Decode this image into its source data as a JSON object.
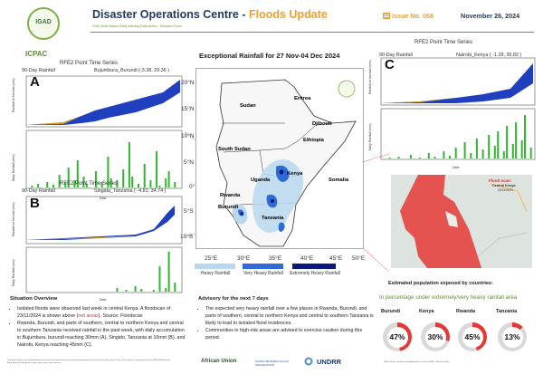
{
  "header": {
    "org": "ICPAC",
    "logo_word": "IGAD",
    "title_main": "Disaster Operations Centre - ",
    "title_highlight": "Floods Update",
    "subtitle": "IGAD Multi-Hazard Early Warning Early Action - Situation Room",
    "issue": "Issue No. 068",
    "date": "November 26, 2024"
  },
  "panels": [
    {
      "letter": "A",
      "title": "RFE2 Point Time Series",
      "series": "90-Day Rainfall",
      "loc": "Bujumbura_Burundi (-3.38, 29.36 )"
    },
    {
      "letter": "B",
      "title": "RFE2 Point Time Series",
      "series": "90-Day Rainfall",
      "loc": "Singida_Tanzania ( -4.81, 34.74 )"
    },
    {
      "letter": "C",
      "title": "RFE2 Point Time Series",
      "series": "90-Day Rainfall",
      "loc": "Nairobi_Kenya ( -1.28, 36.82 )"
    }
  ],
  "axis": {
    "top_ylabel": "Rainfall vs Normal (mm)",
    "bottom_ylabel": "Daily Rainfall (mm)",
    "xlabel": "Date"
  },
  "map": {
    "title": "Exceptional Rainfall for 27 Nov-04 Dec 2024",
    "lats": [
      "20°N",
      "15°N",
      "10°N",
      "5°N",
      "0°",
      "5°S",
      "10°S"
    ],
    "lons": [
      "25°E",
      "30°E",
      "35°E",
      "40°E",
      "45°E",
      "50°E"
    ],
    "countries": [
      "Sudan",
      "Eritrea",
      "Djibouti",
      "Ethiopia",
      "South Sudan",
      "Somalia",
      "Kenya",
      "Uganda",
      "Rwanda",
      "Burundi",
      "Tanzania"
    ],
    "legend": [
      "Heavy Rainfall",
      "Very Heavy Rainfall",
      "Extremely Heavy Rainfall"
    ],
    "colors": {
      "heavy": "#b9d8ef",
      "very": "#2f6bd6",
      "extreme": "#0a1a7c"
    }
  },
  "flood_scan": {
    "title": "Flood scan:",
    "place": "Central Kenya",
    "date": "23/11/2024"
  },
  "exposure": {
    "title": "Estimated population exposed by countries:",
    "subtitle": "In percentage under extremely/very heavy rainfall area",
    "items": [
      {
        "country": "Burundi",
        "pct": "47%",
        "value": 47
      },
      {
        "country": "Kenya",
        "pct": "30%",
        "value": 30
      },
      {
        "country": "Rwanda",
        "pct": "45%",
        "value": 45
      },
      {
        "country": "Tanzania",
        "pct": "13%",
        "value": 13
      }
    ]
  },
  "situation": {
    "heading": "Situation Overview",
    "b1_pre": "Isolated floods were observed last week in central Kenya. A floodscan of 23/11/2024 is shown above (",
    "b1_red": "red areas",
    "b1_post": "). Source: Floodscan",
    "b2": "Rwanda, Burundi, and parts of southern, central to northern Kenya and central to southern Tanzania received rainfall in the past week, with daily accumulation in Bujumbura, burundi reaching 30mm (A), Singido, Tanzania at 10mm (B), and Nairobi, Kenya reaching 45mm (C)."
  },
  "advisory": {
    "heading": "Advisory for the next 7 days",
    "b1": "The expected very heavy rainfall over a few places in Rwanda, Burundi, and parts of southern, central to northern Kenya and central to southern Tanzania is likely to lead to isolated flood incidences.",
    "b2": "Communities in high-risk areas are advised to exercise caution during this period."
  },
  "footer": {
    "left": "This work builds on the methodological innovation and experimental operational implementation of the Disaster Operations Centre. This product is prepared under the IGAD Multi-Hazard Early Warning Early Action Project with support from partners.",
    "partners": [
      "African Union",
      "WORLD METEOROLOGICAL ORGANIZATION",
      "UNDRR"
    ],
    "right": "IGAD Climate Prediction and Applications Centre (ICPAC) - Nairobi, Kenya"
  }
}
